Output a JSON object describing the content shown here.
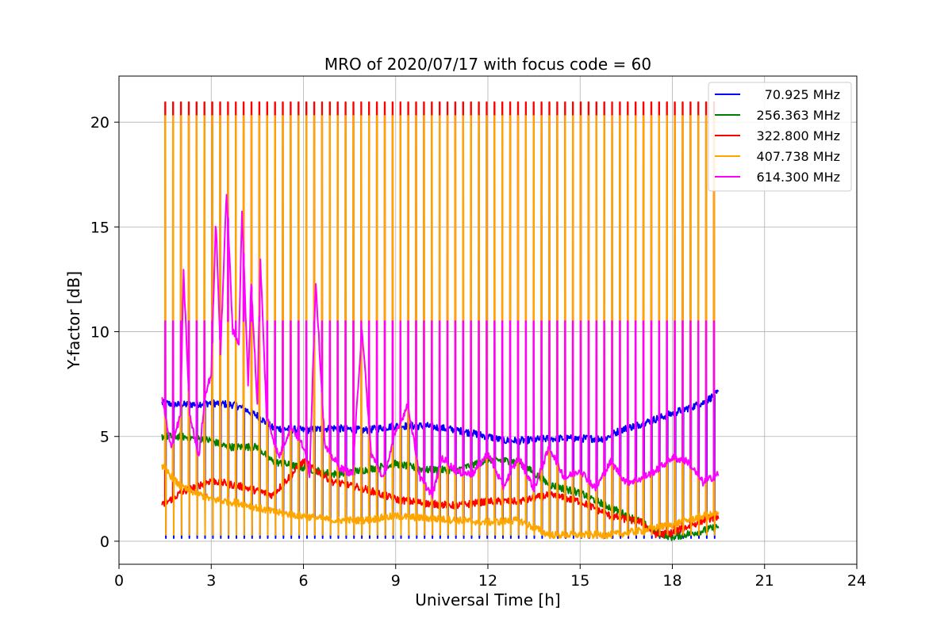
{
  "chart_data": {
    "type": "line",
    "title": "MRO of 2020/07/17 with focus code = 60",
    "xlabel": "Universal Time [h]",
    "ylabel": "Y-factor [dB]",
    "xlim": [
      0,
      24
    ],
    "ylim": [
      -1.1,
      22.2
    ],
    "xticks": [
      0,
      3,
      6,
      9,
      12,
      15,
      18,
      21,
      24
    ],
    "xtick_labels": [
      "0",
      "3",
      "6",
      "9",
      "12",
      "15",
      "18",
      "21",
      "24"
    ],
    "yticks": [
      0,
      5,
      10,
      15,
      20
    ],
    "ytick_labels": [
      "0",
      "5",
      "10",
      "15",
      "20"
    ],
    "grid": true,
    "legend_position": "top-right",
    "pulse_train": {
      "start": 1.5,
      "end": 19.35,
      "count": 71
    },
    "series": [
      {
        "name": " 70.925 MHz",
        "color": "#0000ff",
        "pulse_low": 0.15,
        "baseline": [
          [
            1.4,
            6.6
          ],
          [
            2.0,
            6.5
          ],
          [
            3.0,
            6.6
          ],
          [
            3.8,
            6.5
          ],
          [
            4.5,
            6.0
          ],
          [
            5.0,
            5.4
          ],
          [
            6.0,
            5.3
          ],
          [
            7.0,
            5.4
          ],
          [
            8.0,
            5.3
          ],
          [
            9.0,
            5.5
          ],
          [
            10.0,
            5.5
          ],
          [
            11.0,
            5.3
          ],
          [
            12.0,
            5.0
          ],
          [
            12.5,
            4.8
          ],
          [
            13.0,
            4.8
          ],
          [
            14.0,
            4.9
          ],
          [
            15.0,
            4.9
          ],
          [
            15.8,
            4.9
          ],
          [
            16.3,
            5.3
          ],
          [
            17.0,
            5.6
          ],
          [
            18.0,
            6.1
          ],
          [
            19.0,
            6.6
          ],
          [
            19.5,
            7.1
          ]
        ]
      },
      {
        "name": "256.363 MHz",
        "color": "#008000",
        "pulse_low": null,
        "baseline": [
          [
            1.4,
            5.0
          ],
          [
            2.0,
            5.0
          ],
          [
            3.0,
            4.8
          ],
          [
            3.5,
            4.5
          ],
          [
            4.5,
            4.5
          ],
          [
            5.0,
            3.8
          ],
          [
            6.0,
            3.5
          ],
          [
            7.0,
            3.2
          ],
          [
            8.0,
            3.4
          ],
          [
            9.0,
            3.7
          ],
          [
            10.0,
            3.4
          ],
          [
            11.0,
            3.4
          ],
          [
            12.0,
            3.9
          ],
          [
            13.0,
            3.8
          ],
          [
            14.0,
            2.7
          ],
          [
            15.0,
            2.3
          ],
          [
            16.0,
            1.6
          ],
          [
            17.0,
            0.9
          ],
          [
            17.5,
            0.4
          ],
          [
            18.0,
            0.2
          ],
          [
            19.0,
            0.5
          ],
          [
            19.5,
            0.7
          ]
        ]
      },
      {
        "name": "322.800 MHz",
        "color": "#ff0000",
        "pulse_low": null,
        "pulse_high": 20.95,
        "baseline": [
          [
            1.4,
            1.7
          ],
          [
            2.0,
            2.3
          ],
          [
            3.0,
            2.9
          ],
          [
            4.0,
            2.6
          ],
          [
            5.0,
            2.2
          ],
          [
            6.0,
            3.8
          ],
          [
            7.0,
            2.8
          ],
          [
            8.0,
            2.5
          ],
          [
            9.0,
            2.0
          ],
          [
            10.0,
            1.8
          ],
          [
            11.0,
            1.7
          ],
          [
            12.0,
            1.9
          ],
          [
            13.0,
            1.9
          ],
          [
            14.0,
            2.2
          ],
          [
            15.0,
            1.9
          ],
          [
            16.0,
            1.2
          ],
          [
            17.0,
            0.9
          ],
          [
            17.5,
            0.3
          ],
          [
            18.0,
            0.4
          ],
          [
            19.0,
            1.0
          ],
          [
            19.5,
            1.2
          ]
        ]
      },
      {
        "name": "407.738 MHz",
        "color": "#ffa500",
        "pulse_low": 0.3,
        "pulse_high": 20.3,
        "baseline": [
          [
            1.4,
            3.6
          ],
          [
            2.0,
            2.6
          ],
          [
            3.0,
            2.0
          ],
          [
            4.0,
            1.8
          ],
          [
            5.0,
            1.4
          ],
          [
            6.0,
            1.2
          ],
          [
            7.0,
            1.0
          ],
          [
            8.0,
            1.0
          ],
          [
            9.0,
            1.2
          ],
          [
            10.0,
            1.1
          ],
          [
            11.0,
            1.0
          ],
          [
            12.0,
            0.9
          ],
          [
            13.0,
            1.0
          ],
          [
            14.0,
            0.3
          ],
          [
            15.0,
            0.3
          ],
          [
            16.0,
            0.3
          ],
          [
            17.0,
            0.5
          ],
          [
            18.0,
            0.8
          ],
          [
            19.0,
            1.2
          ],
          [
            19.5,
            1.3
          ]
        ]
      },
      {
        "name": "614.300 MHz",
        "color": "#ff00ff",
        "pulse_low": null,
        "pulse_high": 10.5,
        "baseline": [
          [
            1.4,
            6.8
          ],
          [
            1.7,
            4.5
          ],
          [
            2.0,
            6.0
          ],
          [
            2.1,
            12.8
          ],
          [
            2.3,
            6.0
          ],
          [
            2.6,
            4.0
          ],
          [
            2.8,
            7.0
          ],
          [
            3.0,
            8.0
          ],
          [
            3.15,
            15.4
          ],
          [
            3.3,
            9.0
          ],
          [
            3.5,
            16.7
          ],
          [
            3.7,
            10.0
          ],
          [
            3.9,
            9.5
          ],
          [
            4.0,
            15.8
          ],
          [
            4.2,
            7.5
          ],
          [
            4.3,
            12.3
          ],
          [
            4.5,
            6.5
          ],
          [
            4.6,
            13.4
          ],
          [
            4.8,
            6.0
          ],
          [
            5.2,
            4.0
          ],
          [
            5.6,
            5.5
          ],
          [
            6.0,
            4.5
          ],
          [
            6.2,
            3.2
          ],
          [
            6.4,
            12.4
          ],
          [
            6.7,
            4.5
          ],
          [
            7.2,
            3.5
          ],
          [
            7.6,
            3.2
          ],
          [
            7.9,
            10.2
          ],
          [
            8.2,
            4.2
          ],
          [
            8.6,
            3.0
          ],
          [
            9.0,
            5.2
          ],
          [
            9.4,
            6.5
          ],
          [
            9.8,
            3.0
          ],
          [
            10.2,
            2.2
          ],
          [
            10.5,
            4.0
          ],
          [
            11.0,
            3.3
          ],
          [
            11.5,
            3.2
          ],
          [
            12.0,
            4.2
          ],
          [
            12.5,
            2.6
          ],
          [
            13.0,
            4.0
          ],
          [
            13.5,
            2.5
          ],
          [
            14.0,
            4.5
          ],
          [
            14.5,
            3.0
          ],
          [
            15.0,
            3.4
          ],
          [
            15.5,
            2.5
          ],
          [
            16.0,
            3.8
          ],
          [
            16.5,
            2.8
          ],
          [
            17.0,
            3.0
          ],
          [
            17.5,
            3.4
          ],
          [
            18.0,
            4.0
          ],
          [
            18.5,
            3.8
          ],
          [
            19.0,
            2.8
          ],
          [
            19.5,
            3.2
          ]
        ]
      }
    ]
  }
}
